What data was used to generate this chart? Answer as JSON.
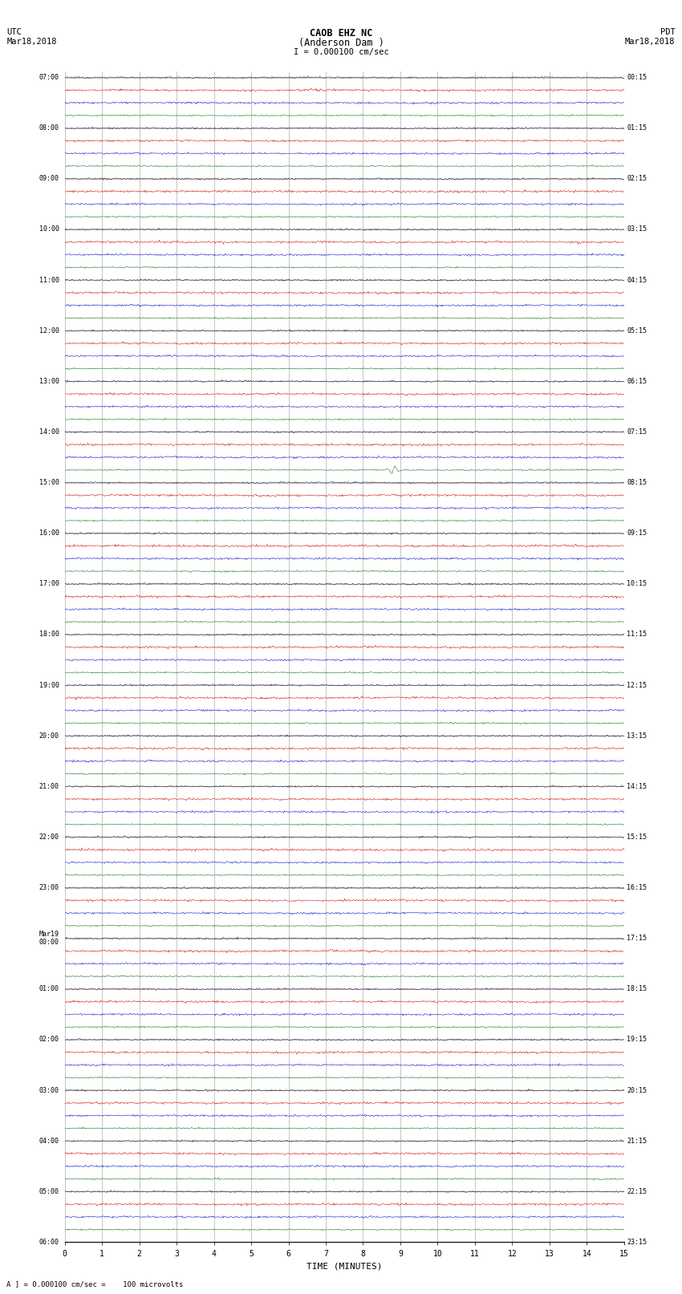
{
  "title_line1": "CAOB EHZ NC",
  "title_line2": "(Anderson Dam )",
  "scale_label": "I = 0.000100 cm/sec",
  "left_label_top": "UTC",
  "left_label_date": "Mar18,2018",
  "right_label_top": "PDT",
  "right_label_date": "Mar18,2018",
  "bottom_note": "A ] = 0.000100 cm/sec =    100 microvolts",
  "xlabel": "TIME (MINUTES)",
  "bg_color": "#ffffff",
  "trace_colors": [
    "#000000",
    "#cc0000",
    "#0000cc",
    "#006600"
  ],
  "grid_color": "#999999",
  "mins_per_row": 15,
  "num_hours": 23,
  "noise_amp_black": 0.03,
  "noise_amp_red": 0.04,
  "noise_amp_blue": 0.035,
  "noise_amp_green": 0.025,
  "event_hour": 7,
  "event_min_in_row": 8.8,
  "event_amplitude": 0.35,
  "left_time_labels": [
    "07:00",
    "08:00",
    "09:00",
    "10:00",
    "11:00",
    "12:00",
    "13:00",
    "14:00",
    "15:00",
    "16:00",
    "17:00",
    "18:00",
    "19:00",
    "20:00",
    "21:00",
    "22:00",
    "23:00",
    "Mar19\n00:00",
    "01:00",
    "02:00",
    "03:00",
    "04:00",
    "05:00",
    "06:00"
  ],
  "right_time_labels": [
    "00:15",
    "01:15",
    "02:15",
    "03:15",
    "04:15",
    "05:15",
    "06:15",
    "07:15",
    "08:15",
    "09:15",
    "10:15",
    "11:15",
    "12:15",
    "13:15",
    "14:15",
    "15:15",
    "16:15",
    "17:15",
    "18:15",
    "19:15",
    "20:15",
    "21:15",
    "22:15",
    "23:15"
  ],
  "x_ticks": [
    0,
    1,
    2,
    3,
    4,
    5,
    6,
    7,
    8,
    9,
    10,
    11,
    12,
    13,
    14,
    15
  ],
  "figwidth": 8.5,
  "figheight": 16.13,
  "dpi": 100
}
